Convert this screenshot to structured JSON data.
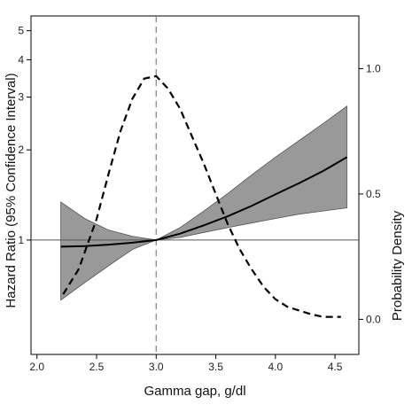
{
  "chart_data": {
    "type": "line",
    "title": "",
    "xlabel": "Gamma gap, g/dl",
    "ylabel_left": "Hazard Ratio (95% Confidence Interval)",
    "ylabel_right": "Probability Density",
    "xlim": [
      1.95,
      4.7
    ],
    "x_ticks": [
      2.0,
      2.5,
      3.0,
      3.5,
      4.0,
      4.5
    ],
    "x_tick_labels": [
      "2.0",
      "2.5",
      "3.0",
      "3.5",
      "4.0",
      "4.5"
    ],
    "y_left_scale": "log",
    "y_left_lim": [
      0.415,
      5.6
    ],
    "y_left_ticks": [
      1,
      2,
      3,
      4,
      5
    ],
    "y_left_tick_labels": [
      "1",
      "2",
      "3",
      "4",
      "5"
    ],
    "y_right_lim": [
      -0.14,
      1.21
    ],
    "y_right_ticks": [
      0.0,
      0.5,
      1.0
    ],
    "y_right_tick_labels": [
      "0.0",
      "0.5",
      "1.0"
    ],
    "reference_lines": {
      "hr": 1,
      "x": 3.0
    },
    "grid": false,
    "colors": {
      "band": "#999999",
      "line": "#000000",
      "ref_line": "#555555",
      "dashed_ref": "#888888"
    },
    "series": [
      {
        "role": "hazard-ratio",
        "axis": "left",
        "style": "solid",
        "x": [
          2.2,
          2.4,
          2.6,
          2.8,
          3.0,
          3.2,
          3.4,
          3.6,
          3.8,
          4.0,
          4.2,
          4.4,
          4.6
        ],
        "y": [
          0.95,
          0.955,
          0.965,
          0.98,
          1.0,
          1.05,
          1.12,
          1.2,
          1.3,
          1.42,
          1.55,
          1.7,
          1.89
        ],
        "lower": [
          0.63,
          0.72,
          0.82,
          0.93,
          1.0,
          1.02,
          1.06,
          1.1,
          1.14,
          1.18,
          1.22,
          1.25,
          1.28
        ],
        "upper": [
          1.34,
          1.18,
          1.08,
          1.03,
          1.0,
          1.1,
          1.25,
          1.43,
          1.65,
          1.89,
          2.15,
          2.45,
          2.8
        ]
      },
      {
        "role": "probability-density",
        "axis": "right",
        "style": "dashed",
        "x": [
          2.22,
          2.35,
          2.5,
          2.6,
          2.7,
          2.8,
          2.9,
          3.0,
          3.1,
          3.2,
          3.3,
          3.4,
          3.5,
          3.6,
          3.7,
          3.8,
          3.9,
          4.0,
          4.1,
          4.2,
          4.3,
          4.4,
          4.55
        ],
        "y": [
          0.1,
          0.2,
          0.4,
          0.58,
          0.75,
          0.88,
          0.96,
          0.97,
          0.92,
          0.84,
          0.73,
          0.62,
          0.5,
          0.38,
          0.28,
          0.2,
          0.13,
          0.08,
          0.05,
          0.035,
          0.02,
          0.01,
          0.01
        ]
      }
    ]
  }
}
